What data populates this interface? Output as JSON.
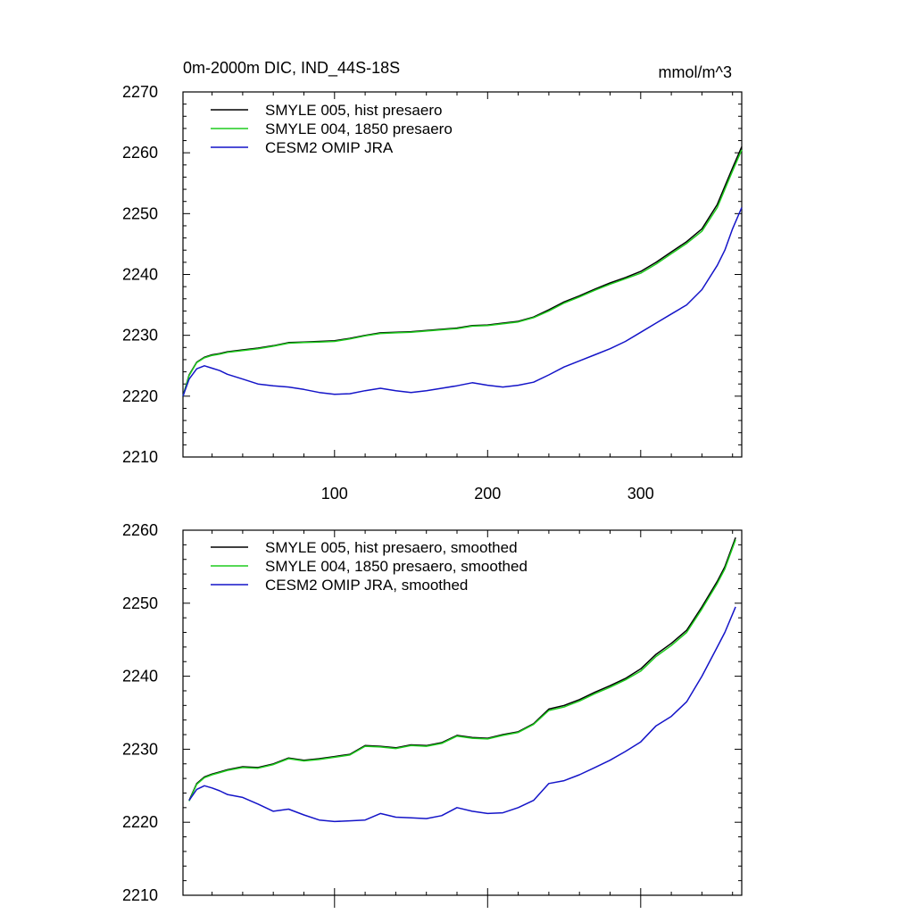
{
  "colors": {
    "black_series": "#000000",
    "green_series": "#1ecc1e",
    "blue_series": "#1414c8"
  },
  "chart_data": [
    {
      "type": "line",
      "title": "0m-2000m DIC, IND_44S-18S",
      "units": "mmol/m^3",
      "xlim": [
        1,
        366
      ],
      "ylim": [
        2210,
        2270
      ],
      "x_ticks": [
        100,
        200,
        300
      ],
      "y_ticks": [
        2210,
        2220,
        2230,
        2240,
        2250,
        2260,
        2270
      ],
      "grid": false,
      "legend_position": "top-left",
      "x": [
        1,
        5,
        10,
        15,
        20,
        25,
        30,
        40,
        50,
        60,
        70,
        80,
        90,
        100,
        110,
        120,
        130,
        140,
        150,
        160,
        170,
        180,
        190,
        200,
        210,
        220,
        230,
        240,
        250,
        260,
        270,
        280,
        290,
        300,
        310,
        320,
        330,
        340,
        350,
        355,
        360,
        366
      ],
      "series": [
        {
          "name": "SMYLE 005, hist presaero",
          "color": "#000000",
          "values": [
            2220.0,
            2223.5,
            2225.6,
            2226.4,
            2226.8,
            2227.0,
            2227.3,
            2227.6,
            2227.9,
            2228.3,
            2228.8,
            2228.9,
            2229.0,
            2229.1,
            2229.5,
            2230.0,
            2230.4,
            2230.5,
            2230.6,
            2230.8,
            2231.0,
            2231.2,
            2231.6,
            2231.7,
            2232.0,
            2232.3,
            2233.0,
            2234.2,
            2235.5,
            2236.5,
            2237.6,
            2238.6,
            2239.5,
            2240.5,
            2242.0,
            2243.7,
            2245.4,
            2247.5,
            2251.5,
            2254.5,
            2257.5,
            2261.0
          ]
        },
        {
          "name": "SMYLE 004, 1850 presaero",
          "color": "#1ecc1e",
          "values": [
            2220.0,
            2223.4,
            2225.5,
            2226.3,
            2226.7,
            2226.9,
            2227.2,
            2227.5,
            2227.8,
            2228.2,
            2228.7,
            2228.8,
            2228.9,
            2229.0,
            2229.4,
            2229.9,
            2230.3,
            2230.4,
            2230.5,
            2230.7,
            2230.9,
            2231.1,
            2231.5,
            2231.6,
            2231.9,
            2232.2,
            2232.9,
            2234.0,
            2235.3,
            2236.3,
            2237.4,
            2238.4,
            2239.3,
            2240.2,
            2241.7,
            2243.4,
            2245.1,
            2247.1,
            2251.0,
            2254.0,
            2257.0,
            2260.5
          ]
        },
        {
          "name": "CESM2 OMIP JRA",
          "color": "#1414c8",
          "values": [
            2220.0,
            2222.8,
            2224.5,
            2225.0,
            2224.6,
            2224.2,
            2223.6,
            2222.8,
            2222.0,
            2221.7,
            2221.5,
            2221.1,
            2220.6,
            2220.3,
            2220.4,
            2220.9,
            2221.3,
            2220.9,
            2220.6,
            2220.9,
            2221.3,
            2221.7,
            2222.2,
            2221.8,
            2221.5,
            2221.8,
            2222.3,
            2223.5,
            2224.8,
            2225.8,
            2226.8,
            2227.8,
            2229.0,
            2230.5,
            2232.0,
            2233.5,
            2235.0,
            2237.5,
            2241.5,
            2244.0,
            2247.5,
            2251.0
          ]
        }
      ]
    },
    {
      "type": "line",
      "title": "",
      "units": "",
      "xlim": [
        1,
        366
      ],
      "ylim": [
        2210,
        2260
      ],
      "x_ticks": [
        100,
        200,
        300
      ],
      "y_ticks": [
        2210,
        2220,
        2230,
        2240,
        2250,
        2260
      ],
      "grid": false,
      "legend_position": "top-left",
      "x": [
        5,
        10,
        15,
        20,
        25,
        30,
        40,
        50,
        60,
        70,
        80,
        90,
        100,
        110,
        120,
        130,
        140,
        150,
        160,
        170,
        180,
        190,
        200,
        210,
        220,
        230,
        240,
        250,
        260,
        270,
        280,
        290,
        300,
        310,
        320,
        330,
        340,
        350,
        355,
        362
      ],
      "series": [
        {
          "name": "SMYLE 005, hist presaero, smoothed",
          "color": "#000000",
          "values": [
            2223.0,
            2225.3,
            2226.2,
            2226.6,
            2226.9,
            2227.2,
            2227.6,
            2227.5,
            2228.0,
            2228.8,
            2228.5,
            2228.7,
            2229.0,
            2229.3,
            2230.5,
            2230.4,
            2230.2,
            2230.6,
            2230.5,
            2230.9,
            2231.9,
            2231.6,
            2231.5,
            2232.0,
            2232.4,
            2233.5,
            2235.5,
            2236.0,
            2236.8,
            2237.8,
            2238.7,
            2239.7,
            2241.0,
            2243.0,
            2244.5,
            2246.3,
            2249.5,
            2253.0,
            2255.0,
            2259.0
          ]
        },
        {
          "name": "SMYLE 004, 1850 presaero, smoothed",
          "color": "#1ecc1e",
          "values": [
            2222.9,
            2225.2,
            2226.1,
            2226.5,
            2226.8,
            2227.1,
            2227.5,
            2227.4,
            2227.9,
            2228.7,
            2228.4,
            2228.6,
            2228.9,
            2229.2,
            2230.4,
            2230.3,
            2230.1,
            2230.5,
            2230.4,
            2230.8,
            2231.8,
            2231.5,
            2231.4,
            2231.9,
            2232.3,
            2233.4,
            2235.3,
            2235.8,
            2236.6,
            2237.6,
            2238.5,
            2239.5,
            2240.7,
            2242.7,
            2244.2,
            2246.0,
            2249.2,
            2252.7,
            2254.7,
            2258.7
          ]
        },
        {
          "name": "CESM2 OMIP JRA, smoothed",
          "color": "#1414c8",
          "values": [
            2223.0,
            2224.5,
            2225.0,
            2224.7,
            2224.3,
            2223.8,
            2223.4,
            2222.5,
            2221.5,
            2221.8,
            2221.0,
            2220.3,
            2220.1,
            2220.2,
            2220.3,
            2221.2,
            2220.7,
            2220.6,
            2220.5,
            2220.9,
            2222.0,
            2221.5,
            2221.2,
            2221.3,
            2222.0,
            2223.0,
            2225.3,
            2225.7,
            2226.5,
            2227.5,
            2228.5,
            2229.7,
            2231.0,
            2233.2,
            2234.5,
            2236.5,
            2240.0,
            2244.0,
            2246.0,
            2249.5
          ]
        }
      ]
    }
  ]
}
